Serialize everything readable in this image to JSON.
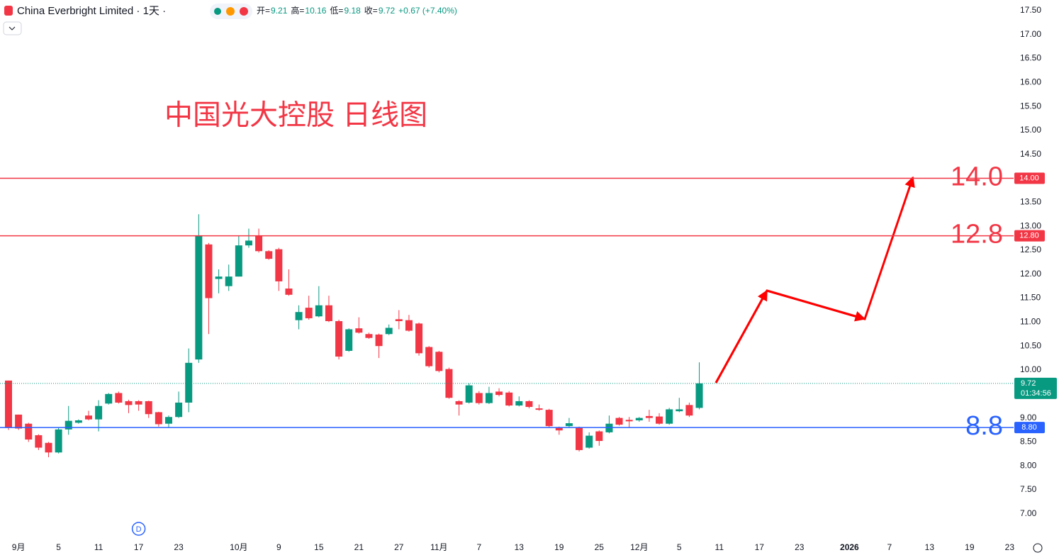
{
  "chart_data": {
    "type": "candlestick",
    "title": "中国光大控股 日线图",
    "symbol": "China Everbright Limited · 1天 ·",
    "ohlc_legend": [
      {
        "label": "开=",
        "value": "9.21"
      },
      {
        "label": "高=",
        "value": "10.16"
      },
      {
        "label": "低=",
        "value": "9.18"
      },
      {
        "label": "收=",
        "value": "9.72"
      }
    ],
    "change": "+0.67 (+7.40%)",
    "up_color": "#089981",
    "down_color": "#f23645",
    "open": [
      9.78,
      9.07,
      8.88,
      8.64,
      8.48,
      8.28,
      8.76,
      8.9,
      9.05,
      8.97,
      9.3,
      9.52,
      9.35,
      9.35,
      9.35,
      9.12,
      8.88,
      9.02,
      9.32,
      10.22,
      12.62,
      11.9,
      11.75,
      11.95,
      12.6,
      12.8,
      12.48,
      12.52,
      11.7,
      11.04,
      11.3,
      11.12,
      11.35,
      11.02,
      10.4,
      10.87,
      10.75,
      10.74,
      10.75,
      11.06,
      11.04,
      10.97,
      10.48,
      10.38,
      10.02,
      9.35,
      9.32,
      9.52,
      9.31,
      9.55,
      9.53,
      9.26,
      9.35,
      9.2,
      9.17,
      8.8,
      8.83,
      8.8,
      8.38,
      8.72,
      8.7,
      9.0,
      8.96,
      8.95,
      9.04,
      9.03,
      8.88,
      9.14,
      9.27,
      9.21
    ],
    "high": [
      9.78,
      9.07,
      8.9,
      8.66,
      8.5,
      8.8,
      9.25,
      8.97,
      9.15,
      9.37,
      9.52,
      9.55,
      9.38,
      9.37,
      9.36,
      9.13,
      9.05,
      9.55,
      10.45,
      13.25,
      12.65,
      12.1,
      12.2,
      12.8,
      12.95,
      12.95,
      12.5,
      12.55,
      12.1,
      11.35,
      11.55,
      11.75,
      11.55,
      11.05,
      10.87,
      11.1,
      10.78,
      10.76,
      10.95,
      11.25,
      11.15,
      10.99,
      10.5,
      10.4,
      10.05,
      9.37,
      9.72,
      9.56,
      9.65,
      9.62,
      9.56,
      9.45,
      9.37,
      9.28,
      9.19,
      8.82,
      9.0,
      8.82,
      8.7,
      8.74,
      9.05,
      9.02,
      9.02,
      9.02,
      9.17,
      9.1,
      9.21,
      9.42,
      9.32,
      10.16
    ],
    "low": [
      8.75,
      8.75,
      8.5,
      8.33,
      8.18,
      8.26,
      8.65,
      8.88,
      8.95,
      8.72,
      9.28,
      9.3,
      9.1,
      9.15,
      9.0,
      8.82,
      8.8,
      9.0,
      9.12,
      10.15,
      10.75,
      11.6,
      11.65,
      11.95,
      12.55,
      12.45,
      12.3,
      11.65,
      11.55,
      10.85,
      11.05,
      11.1,
      11.0,
      10.22,
      10.38,
      10.76,
      10.65,
      10.25,
      10.73,
      10.85,
      10.8,
      10.3,
      10.05,
      9.95,
      9.4,
      9.05,
      9.3,
      9.28,
      9.29,
      9.45,
      9.24,
      9.24,
      9.2,
      9.15,
      8.8,
      8.65,
      8.81,
      8.3,
      8.36,
      8.42,
      8.68,
      8.84,
      8.8,
      8.92,
      8.92,
      8.86,
      8.86,
      9.12,
      9.02,
      9.18
    ],
    "close": [
      8.8,
      8.78,
      8.55,
      8.38,
      8.28,
      8.76,
      8.94,
      8.95,
      8.97,
      9.25,
      9.5,
      9.32,
      9.27,
      9.28,
      9.08,
      8.87,
      9.02,
      9.32,
      10.15,
      12.8,
      11.5,
      11.95,
      11.95,
      12.6,
      12.7,
      12.48,
      12.32,
      11.85,
      11.57,
      11.21,
      11.08,
      11.35,
      11.02,
      10.28,
      10.85,
      10.78,
      10.67,
      10.5,
      10.88,
      11.02,
      10.82,
      10.35,
      10.08,
      9.98,
      9.42,
      9.28,
      9.68,
      9.31,
      9.52,
      9.48,
      9.26,
      9.35,
      9.23,
      9.17,
      8.83,
      8.74,
      8.89,
      8.33,
      8.63,
      8.52,
      8.88,
      8.86,
      8.93,
      9.0,
      9.0,
      8.88,
      9.18,
      9.18,
      9.05,
      9.72
    ],
    "xlim": [
      -0.85,
      100.4
    ],
    "xticks": [
      {
        "value": 1,
        "label": "9月"
      },
      {
        "value": 5,
        "label": "5"
      },
      {
        "value": 9,
        "label": "11"
      },
      {
        "value": 13,
        "label": "17"
      },
      {
        "value": 17,
        "label": "23"
      },
      {
        "value": 23,
        "label": "10月"
      },
      {
        "value": 27,
        "label": "9"
      },
      {
        "value": 31,
        "label": "15"
      },
      {
        "value": 35,
        "label": "21"
      },
      {
        "value": 39,
        "label": "27"
      },
      {
        "value": 43,
        "label": "11月"
      },
      {
        "value": 47,
        "label": "7"
      },
      {
        "value": 51,
        "label": "13"
      },
      {
        "value": 55,
        "label": "19"
      },
      {
        "value": 59,
        "label": "25"
      },
      {
        "value": 63,
        "label": "12月"
      },
      {
        "value": 67,
        "label": "5"
      },
      {
        "value": 71,
        "label": "11"
      },
      {
        "value": 75,
        "label": "17"
      },
      {
        "value": 79,
        "label": "23"
      },
      {
        "value": 84,
        "label": "2026"
      },
      {
        "value": 88,
        "label": "7"
      },
      {
        "value": 92,
        "label": "13"
      },
      {
        "value": 96,
        "label": "19"
      },
      {
        "value": 100,
        "label": "23"
      }
    ],
    "ylim": [
      6.48,
      17.72
    ],
    "yticks": [
      {
        "value": 7,
        "label": "7.00"
      },
      {
        "value": 7.5,
        "label": "7.50"
      },
      {
        "value": 8,
        "label": "8.00"
      },
      {
        "value": 8.5,
        "label": "8.50"
      },
      {
        "value": 9,
        "label": "9.00"
      },
      {
        "value": 9.5,
        "label": "9.50"
      },
      {
        "value": 10,
        "label": "10.00"
      },
      {
        "value": 10.5,
        "label": "10.50"
      },
      {
        "value": 11,
        "label": "11.00"
      },
      {
        "value": 11.5,
        "label": "11.50"
      },
      {
        "value": 12,
        "label": "12.00"
      },
      {
        "value": 12.5,
        "label": "12.50"
      },
      {
        "value": 13,
        "label": "13.00"
      },
      {
        "value": 13.5,
        "label": "13.50"
      },
      {
        "value": 14,
        "label": "14.00"
      },
      {
        "value": 14.5,
        "label": "14.50"
      },
      {
        "value": 15,
        "label": "15.00"
      },
      {
        "value": 15.5,
        "label": "15.50"
      },
      {
        "value": 16,
        "label": "16.00"
      },
      {
        "value": 16.5,
        "label": "16.50"
      },
      {
        "value": 17,
        "label": "17.00"
      },
      {
        "value": 17.5,
        "label": "17.50"
      }
    ],
    "levels": [
      {
        "value": 14.0,
        "label": "14.0",
        "axis_label": "14.00",
        "color": "#f23645"
      },
      {
        "value": 12.8,
        "label": "12.8",
        "axis_label": "12.80",
        "color": "#f23645"
      },
      {
        "value": 8.8,
        "label": "8.8",
        "axis_label": "8.80",
        "color": "#2962ff"
      }
    ],
    "last_price": {
      "value": 9.72,
      "label": "9.72",
      "countdown": "01:34:56"
    },
    "event_marker": {
      "x": 13,
      "label": "D"
    }
  }
}
